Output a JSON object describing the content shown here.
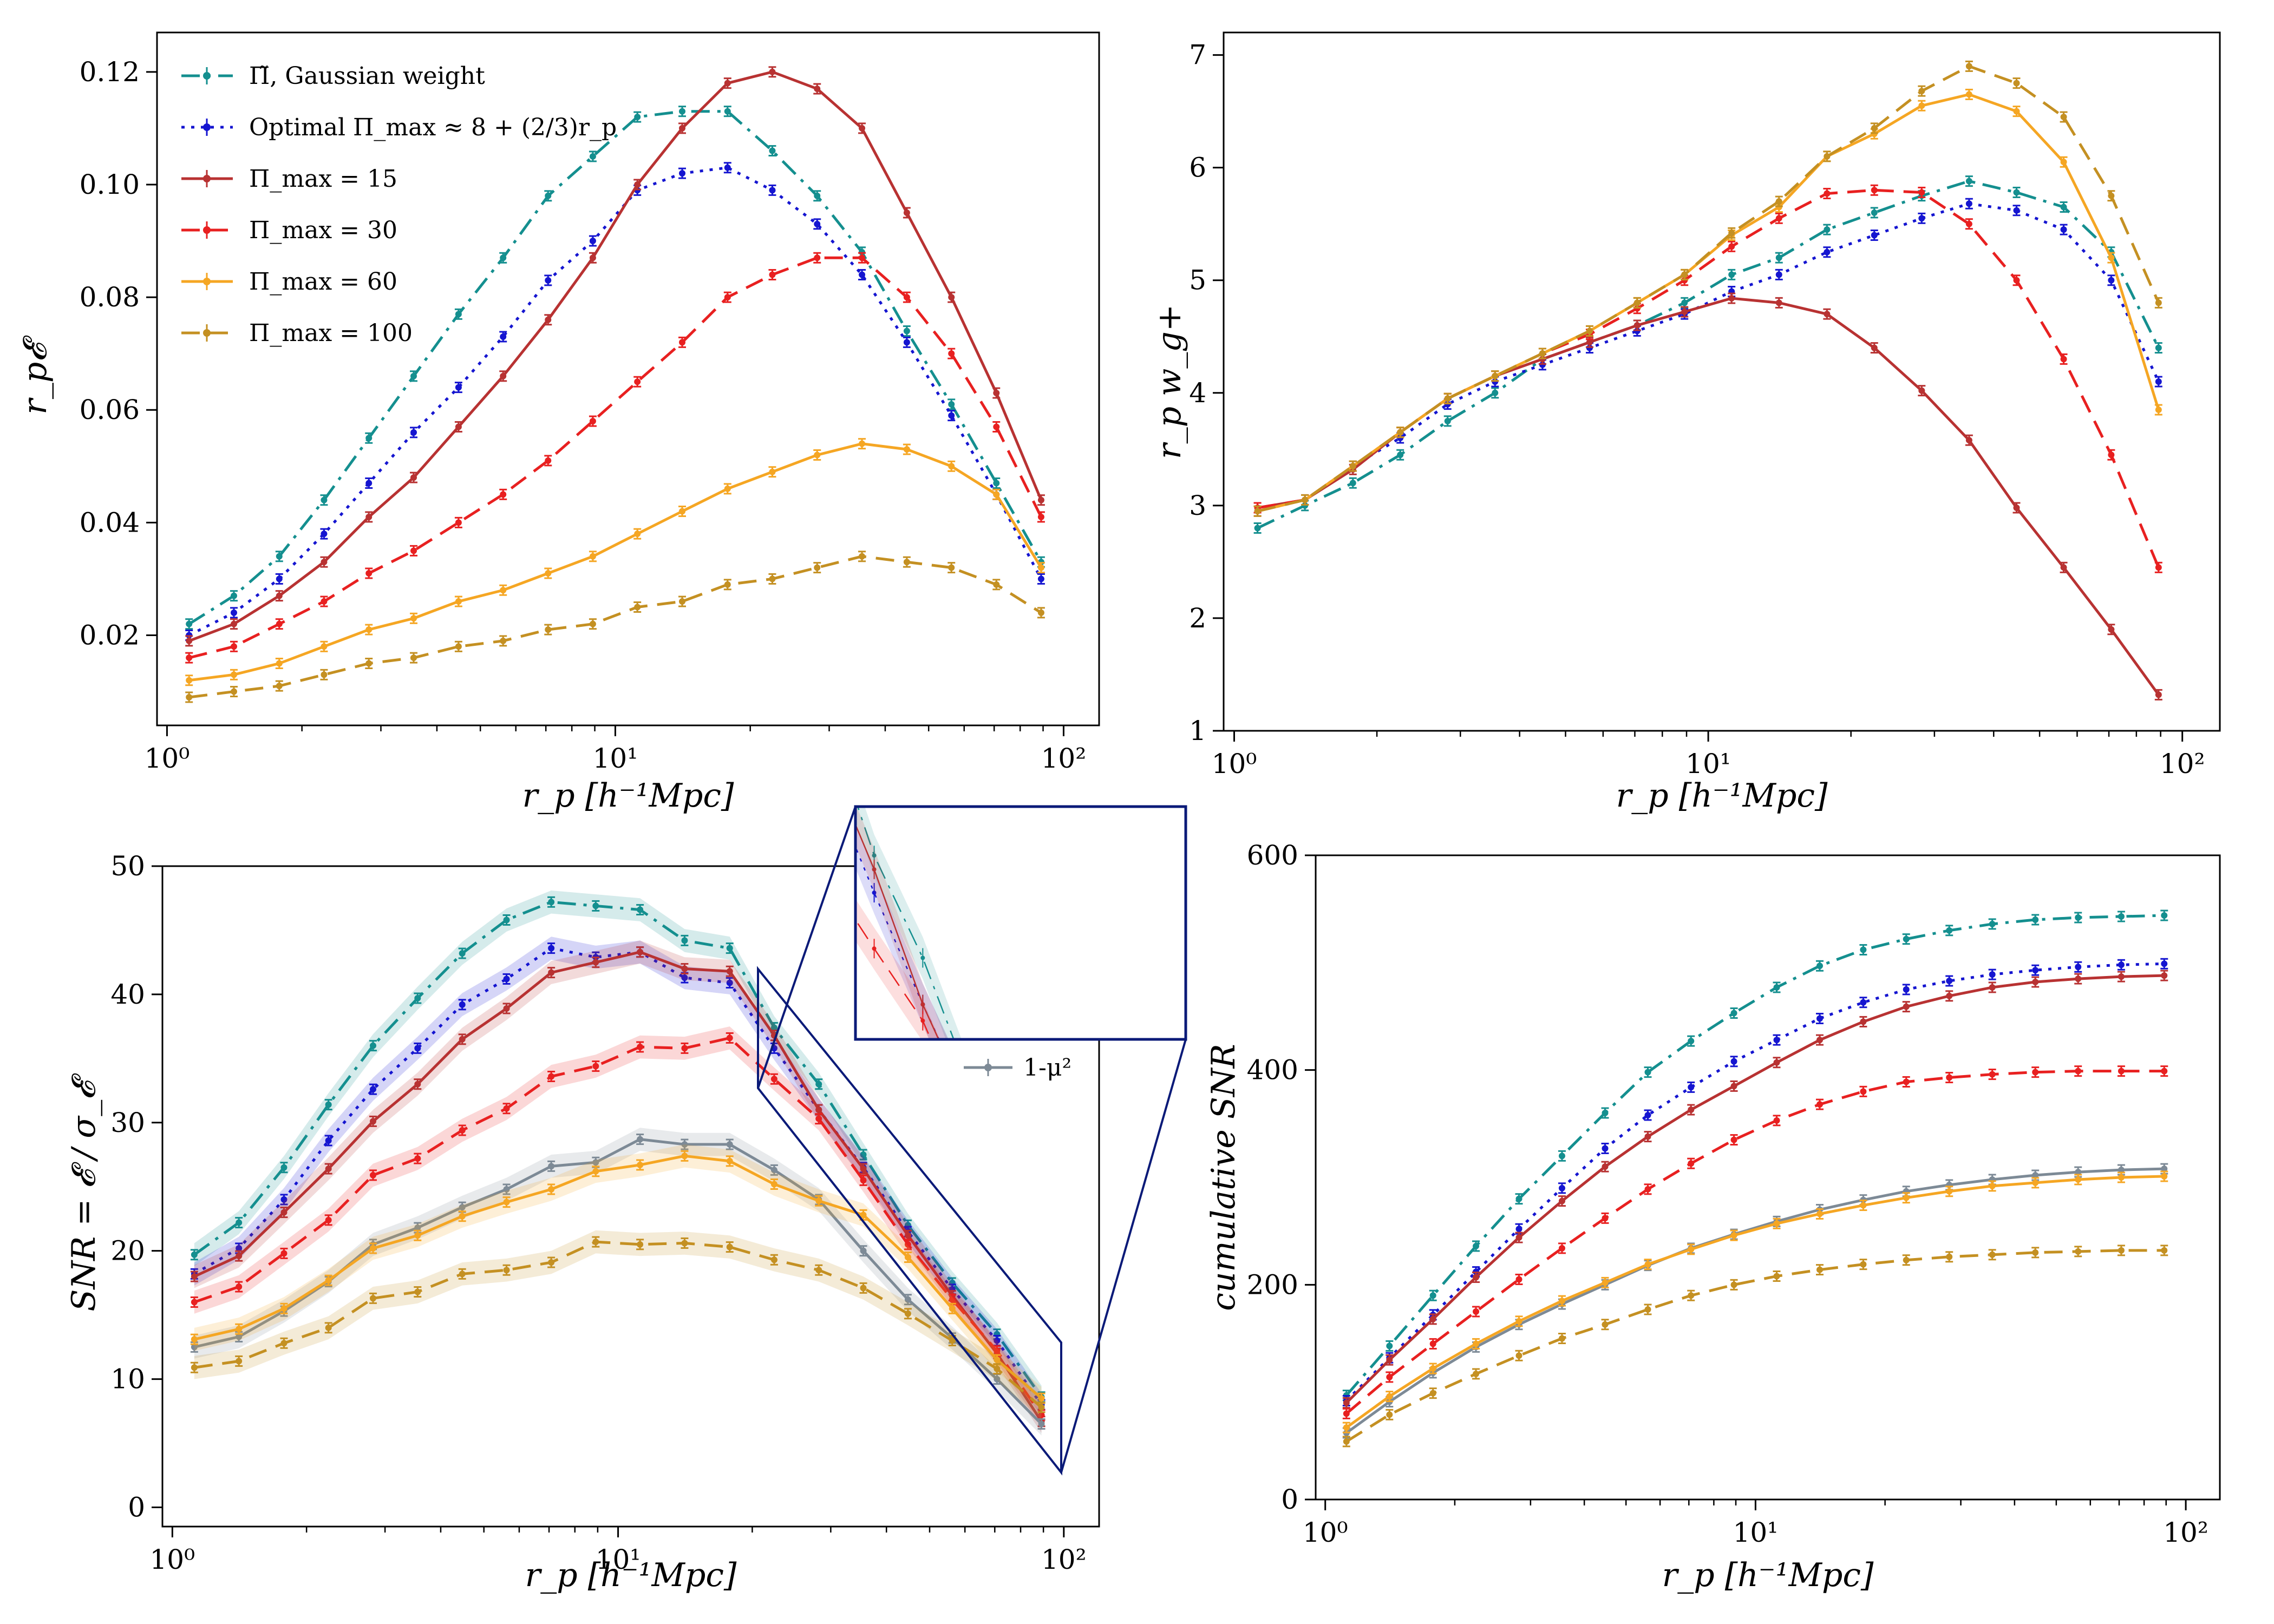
{
  "figure": {
    "description_note": "Four-panel figure comparing projected intrinsic-alignment statistics vs projected separation"
  },
  "chart_data": [
    {
      "id": "top-left",
      "type": "line",
      "xscale": "log",
      "xlim": [
        0.95,
        120
      ],
      "ylim": [
        0.004,
        0.127
      ],
      "xticks": [
        1,
        10,
        100
      ],
      "xtick_labels": [
        "10⁰",
        "10¹",
        "10²"
      ],
      "yticks": [
        0.02,
        0.04,
        0.06,
        0.08,
        0.1,
        0.12
      ],
      "ytick_labels": [
        "0.02",
        "0.04",
        "0.06",
        "0.08",
        "0.10",
        "0.12"
      ],
      "xlabel": "r_p [h⁻¹Mpc]",
      "ylabel": "r_p𝓔",
      "legend_position": "top-left",
      "x": [
        1.12,
        1.41,
        1.78,
        2.24,
        2.82,
        3.55,
        4.47,
        5.62,
        7.08,
        8.91,
        11.2,
        14.1,
        17.8,
        22.4,
        28.2,
        35.5,
        44.7,
        56.2,
        70.8,
        89.1
      ],
      "series": [
        {
          "name": "Π̃, Gaussian weight",
          "color": "#148f8f",
          "dash": "dashdot",
          "values": [
            0.022,
            0.027,
            0.034,
            0.044,
            0.055,
            0.066,
            0.077,
            0.087,
            0.098,
            0.105,
            0.112,
            0.113,
            0.113,
            0.106,
            0.098,
            0.088,
            0.074,
            0.061,
            0.047,
            0.033
          ]
        },
        {
          "name": "Optimal Π_max ≈ 8 + (2/3)r_p",
          "color": "#1515d0",
          "dash": "dotted",
          "values": [
            0.02,
            0.024,
            0.03,
            0.038,
            0.047,
            0.056,
            0.064,
            0.073,
            0.083,
            0.09,
            0.099,
            0.102,
            0.103,
            0.099,
            0.093,
            0.084,
            0.072,
            0.059,
            0.045,
            0.03
          ]
        },
        {
          "name": "Π_max = 15",
          "color": "#b83232",
          "dash": "solid",
          "values": [
            0.019,
            0.022,
            0.027,
            0.033,
            0.041,
            0.048,
            0.057,
            0.066,
            0.076,
            0.087,
            0.1,
            0.11,
            0.118,
            0.12,
            0.117,
            0.11,
            0.095,
            0.08,
            0.063,
            0.044
          ]
        },
        {
          "name": "Π_max = 30",
          "color": "#e82020",
          "dash": "dashed",
          "values": [
            0.016,
            0.018,
            0.022,
            0.026,
            0.031,
            0.035,
            0.04,
            0.045,
            0.051,
            0.058,
            0.065,
            0.072,
            0.08,
            0.084,
            0.087,
            0.087,
            0.08,
            0.07,
            0.057,
            0.041
          ]
        },
        {
          "name": "Π_max = 60",
          "color": "#f5a623",
          "dash": "solid",
          "values": [
            0.012,
            0.013,
            0.015,
            0.018,
            0.021,
            0.023,
            0.026,
            0.028,
            0.031,
            0.034,
            0.038,
            0.042,
            0.046,
            0.049,
            0.052,
            0.054,
            0.053,
            0.05,
            0.045,
            0.032
          ]
        },
        {
          "name": "Π_max = 100",
          "color": "#c49022",
          "dash": "dashed",
          "values": [
            0.009,
            0.01,
            0.011,
            0.013,
            0.015,
            0.016,
            0.018,
            0.019,
            0.021,
            0.022,
            0.025,
            0.026,
            0.029,
            0.03,
            0.032,
            0.034,
            0.033,
            0.032,
            0.029,
            0.024
          ]
        }
      ]
    },
    {
      "id": "top-right",
      "type": "line",
      "xscale": "log",
      "xlim": [
        0.95,
        120
      ],
      "ylim": [
        1,
        7.2
      ],
      "xticks": [
        1,
        10,
        100
      ],
      "xtick_labels": [
        "10⁰",
        "10¹",
        "10²"
      ],
      "yticks": [
        1,
        2,
        3,
        4,
        5,
        6,
        7
      ],
      "ytick_labels": [
        "1",
        "2",
        "3",
        "4",
        "5",
        "6",
        "7"
      ],
      "xlabel": "r_p [h⁻¹Mpc]",
      "ylabel": "r_p w_g+",
      "x": [
        1.12,
        1.41,
        1.78,
        2.24,
        2.82,
        3.55,
        4.47,
        5.62,
        7.08,
        8.91,
        11.2,
        14.1,
        17.8,
        22.4,
        28.2,
        35.5,
        44.7,
        56.2,
        70.8,
        89.1
      ],
      "series": [
        {
          "name": "Π̃, Gaussian weight",
          "color": "#148f8f",
          "dash": "dashdot",
          "values": [
            2.8,
            3.0,
            3.2,
            3.45,
            3.75,
            4.0,
            4.3,
            4.45,
            4.6,
            4.8,
            5.05,
            5.2,
            5.45,
            5.6,
            5.75,
            5.88,
            5.78,
            5.65,
            5.25,
            4.4
          ]
        },
        {
          "name": "Optimal Π_max ≈ 8 + (2/3)r_p",
          "color": "#1515d0",
          "dash": "dotted",
          "values": [
            2.95,
            3.05,
            3.35,
            3.6,
            3.9,
            4.1,
            4.25,
            4.4,
            4.55,
            4.7,
            4.9,
            5.05,
            5.25,
            5.4,
            5.55,
            5.68,
            5.62,
            5.45,
            5.0,
            4.1
          ]
        },
        {
          "name": "Π_max = 15",
          "color": "#b83232",
          "dash": "solid",
          "values": [
            2.98,
            3.05,
            3.32,
            3.65,
            3.95,
            4.15,
            4.3,
            4.45,
            4.6,
            4.72,
            4.84,
            4.8,
            4.7,
            4.4,
            4.02,
            3.58,
            2.98,
            2.45,
            1.9,
            1.32
          ]
        },
        {
          "name": "Π_max = 30",
          "color": "#e82020",
          "dash": "dashed",
          "values": [
            2.98,
            3.05,
            3.35,
            3.65,
            3.95,
            4.15,
            4.35,
            4.52,
            4.75,
            5.0,
            5.3,
            5.55,
            5.77,
            5.8,
            5.78,
            5.5,
            5.0,
            4.3,
            3.45,
            2.45
          ]
        },
        {
          "name": "Π_max = 60",
          "color": "#f5a623",
          "dash": "solid",
          "values": [
            2.95,
            3.05,
            3.35,
            3.65,
            3.95,
            4.15,
            4.35,
            4.55,
            4.8,
            5.05,
            5.4,
            5.65,
            6.1,
            6.3,
            6.55,
            6.65,
            6.5,
            6.05,
            5.2,
            3.85
          ]
        },
        {
          "name": "Π_max = 100",
          "color": "#c49022",
          "dash": "dashed",
          "values": [
            2.95,
            3.05,
            3.35,
            3.65,
            3.95,
            4.15,
            4.35,
            4.55,
            4.8,
            5.05,
            5.42,
            5.7,
            6.1,
            6.35,
            6.68,
            6.9,
            6.75,
            6.45,
            5.75,
            4.8
          ]
        }
      ]
    },
    {
      "id": "bottom-left",
      "type": "line",
      "xscale": "log",
      "xlim": [
        0.95,
        120
      ],
      "ylim": [
        -1.5,
        50
      ],
      "xticks": [
        1,
        10,
        100
      ],
      "xtick_labels": [
        "10⁰",
        "10¹",
        "10²"
      ],
      "yticks": [
        0,
        10,
        20,
        30,
        40,
        50
      ],
      "ytick_labels": [
        "0",
        "10",
        "20",
        "30",
        "40",
        "50"
      ],
      "xlabel": "r_p [h⁻¹Mpc]",
      "ylabel": "SNR = 𝓔 / σ_𝓔",
      "extra_legend": "1-μ²",
      "x": [
        1.12,
        1.41,
        1.78,
        2.24,
        2.82,
        3.55,
        4.47,
        5.62,
        7.08,
        8.91,
        11.2,
        14.1,
        17.8,
        22.4,
        28.2,
        35.5,
        44.7,
        56.2,
        70.8,
        89.1
      ],
      "series": [
        {
          "name": "Π̃, Gaussian weight",
          "color": "#148f8f",
          "dash": "dashdot",
          "values": [
            19.7,
            22.2,
            26.5,
            31.4,
            36.0,
            39.7,
            43.2,
            45.8,
            47.2,
            46.9,
            46.6,
            44.2,
            43.6,
            37.4,
            33.0,
            27.5,
            22.0,
            17.5,
            13.5,
            8.6
          ]
        },
        {
          "name": "Optimal Π_max ≈ 8 + (2/3)r_p",
          "color": "#1515d0",
          "dash": "dotted",
          "values": [
            18.2,
            20.2,
            24.0,
            28.6,
            32.6,
            35.8,
            39.2,
            41.2,
            43.6,
            42.9,
            43.3,
            41.3,
            40.9,
            35.8,
            31.0,
            26.5,
            21.5,
            17.0,
            13.0,
            8.0
          ]
        },
        {
          "name": "Π_max = 15",
          "color": "#b83232",
          "dash": "solid",
          "values": [
            18.0,
            19.6,
            23.0,
            26.4,
            30.1,
            33.0,
            36.5,
            38.9,
            41.7,
            42.5,
            43.3,
            42.0,
            41.8,
            36.8,
            31.0,
            26.4,
            21.2,
            16.5,
            12.0,
            6.7
          ]
        },
        {
          "name": "Π_max = 30",
          "color": "#e82020",
          "dash": "dashed",
          "values": [
            16.0,
            17.2,
            19.8,
            22.4,
            25.9,
            27.2,
            29.4,
            31.1,
            33.6,
            34.4,
            35.9,
            35.8,
            36.6,
            33.4,
            30.3,
            25.5,
            20.5,
            16.2,
            12.2,
            7.2
          ]
        },
        {
          "name": "1-μ²",
          "color": "#7d8a96",
          "dash": "solid",
          "values": [
            12.5,
            13.3,
            15.3,
            17.6,
            20.5,
            21.8,
            23.4,
            24.8,
            26.6,
            26.9,
            28.7,
            28.3,
            28.3,
            26.3,
            24.0,
            20.0,
            16.2,
            13.2,
            10.0,
            6.5
          ]
        },
        {
          "name": "Π_max = 60",
          "color": "#f5a623",
          "dash": "solid",
          "values": [
            13.1,
            13.9,
            15.5,
            17.7,
            20.2,
            21.2,
            22.7,
            23.8,
            24.8,
            26.2,
            26.7,
            27.4,
            27.0,
            25.2,
            23.9,
            22.8,
            19.5,
            15.5,
            11.5,
            8.5
          ]
        },
        {
          "name": "Π_max = 100",
          "color": "#c49022",
          "dash": "dashed",
          "values": [
            10.9,
            11.4,
            12.8,
            14.0,
            16.3,
            16.8,
            18.2,
            18.5,
            19.1,
            20.7,
            20.5,
            20.6,
            20.3,
            19.3,
            18.5,
            17.1,
            15.1,
            13.0,
            10.8,
            7.8
          ]
        }
      ]
    },
    {
      "id": "bottom-right",
      "type": "line",
      "xscale": "log",
      "xlim": [
        0.95,
        120
      ],
      "ylim": [
        0,
        600
      ],
      "xticks": [
        1,
        10,
        100
      ],
      "xtick_labels": [
        "10⁰",
        "10¹",
        "10²"
      ],
      "yticks": [
        0,
        200,
        400,
        600
      ],
      "ytick_labels": [
        "0",
        "200",
        "400",
        "600"
      ],
      "xlabel": "r_p [h⁻¹Mpc]",
      "ylabel": "cumulative SNR",
      "x": [
        1.12,
        1.41,
        1.78,
        2.24,
        2.82,
        3.55,
        4.47,
        5.62,
        7.08,
        8.91,
        11.2,
        14.1,
        17.8,
        22.4,
        28.2,
        35.5,
        44.7,
        56.2,
        70.8,
        89.1
      ],
      "series": [
        {
          "name": "Π̃, Gaussian weight",
          "color": "#148f8f",
          "dash": "dashdot",
          "values": [
            97,
            143,
            190,
            236,
            280,
            320,
            360,
            398,
            427,
            453,
            477,
            497,
            512,
            522,
            530,
            536,
            540,
            542,
            543,
            544
          ]
        },
        {
          "name": "Optimal Π_max ≈ 8 + (2/3)r_p",
          "color": "#1515d0",
          "dash": "dotted",
          "values": [
            92,
            132,
            172,
            212,
            252,
            290,
            327,
            358,
            384,
            408,
            428,
            448,
            463,
            475,
            483,
            489,
            493,
            496,
            498,
            499
          ]
        },
        {
          "name": "Π_max = 15",
          "color": "#b83232",
          "dash": "solid",
          "values": [
            90,
            130,
            168,
            207,
            244,
            278,
            310,
            338,
            363,
            385,
            407,
            428,
            445,
            459,
            469,
            477,
            482,
            485,
            487,
            488
          ]
        },
        {
          "name": "Π_max = 30",
          "color": "#e82020",
          "dash": "dashed",
          "values": [
            80,
            114,
            145,
            175,
            205,
            234,
            262,
            289,
            313,
            335,
            353,
            368,
            380,
            389,
            393,
            396,
            398,
            399,
            399,
            399
          ]
        },
        {
          "name": "1-μ²",
          "color": "#7d8a96",
          "dash": "solid",
          "values": [
            62,
            91,
            118,
            142,
            163,
            182,
            200,
            218,
            234,
            247,
            259,
            270,
            279,
            287,
            293,
            298,
            302,
            305,
            307,
            308
          ]
        },
        {
          "name": "Π_max = 60",
          "color": "#f5a623",
          "dash": "solid",
          "values": [
            67,
            96,
            122,
            145,
            166,
            185,
            202,
            219,
            233,
            246,
            257,
            266,
            274,
            281,
            287,
            292,
            295,
            298,
            300,
            301
          ]
        },
        {
          "name": "Π_max = 100",
          "color": "#c49022",
          "dash": "dashed",
          "values": [
            54,
            79,
            99,
            117,
            134,
            150,
            163,
            177,
            190,
            200,
            208,
            214,
            219,
            223,
            226,
            228,
            230,
            231,
            232,
            232
          ]
        }
      ]
    }
  ]
}
